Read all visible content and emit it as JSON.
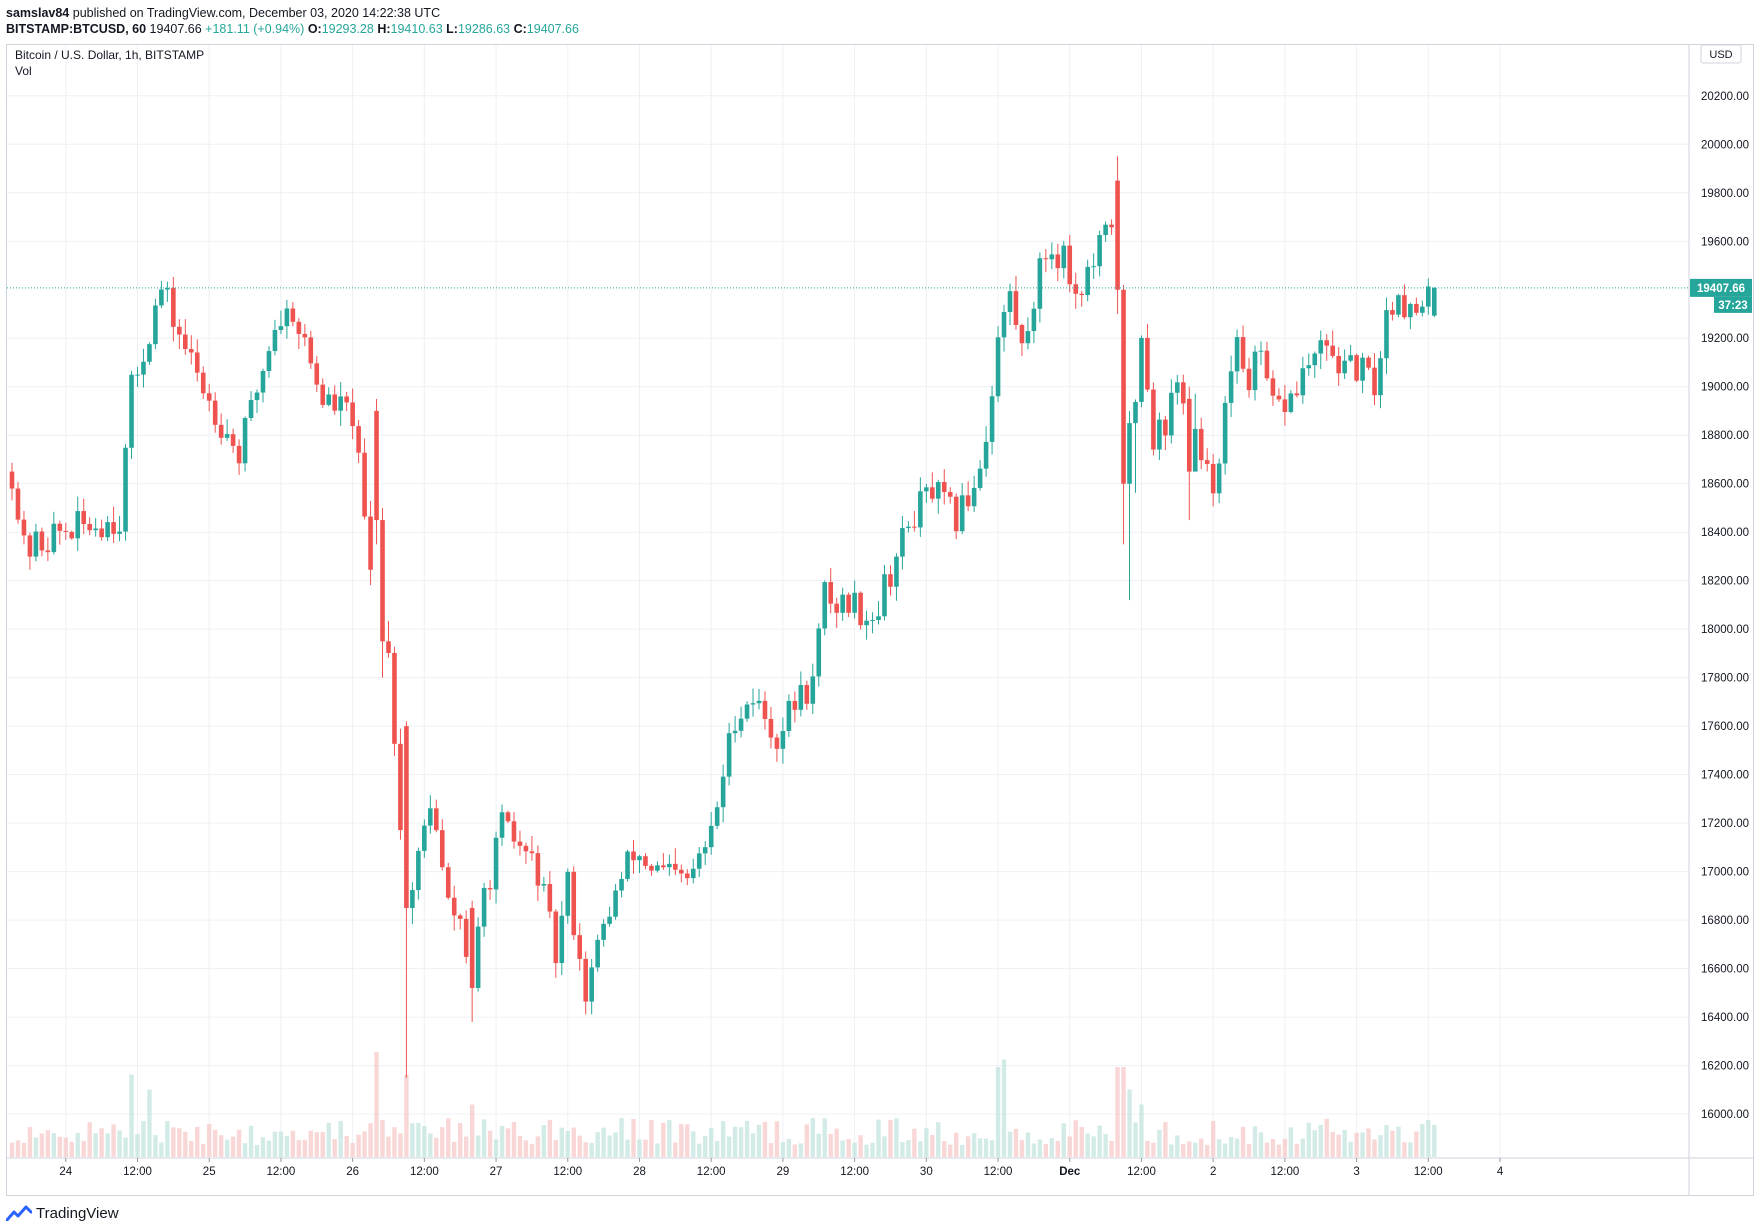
{
  "header": {
    "published_by": "samslav84",
    "published_text": " published on TradingView.com, December 03, 2020 14:22:38 UTC",
    "symbol": "BITSTAMP:BTCUSD, 60",
    "last": "19407.66",
    "change": "+181.11 (+0.94%)",
    "o_label": "O:",
    "o_value": "19293.28",
    "h_label": "H:",
    "h_value": "19410.63",
    "l_label": "L:",
    "l_value": "19286.63",
    "c_label": "C:",
    "c_value": "19407.66"
  },
  "legend": {
    "series_title": "Bitcoin / U.S. Dollar, 1h, BITSTAMP",
    "vol_label": "Vol"
  },
  "currency_button": "USD",
  "price_tag": "19407.66",
  "countdown_tag": "37:23",
  "logo_text": "TradingView",
  "colors": {
    "up": "#26a69a",
    "down": "#ef5350",
    "grid": "#eef0f4",
    "axis_text": "#131722"
  },
  "chart_data": {
    "type": "candlestick",
    "ylim": [
      15860,
      20360
    ],
    "yticks": [
      {
        "v": 20200,
        "label": "20200.00"
      },
      {
        "v": 20000,
        "label": "20000.00"
      },
      {
        "v": 19800,
        "label": "19800.00"
      },
      {
        "v": 19600,
        "label": "19600.00"
      },
      {
        "v": 19200,
        "label": "19200.00"
      },
      {
        "v": 19000,
        "label": "19000.00"
      },
      {
        "v": 18800,
        "label": "18800.00"
      },
      {
        "v": 18600,
        "label": "18600.00"
      },
      {
        "v": 18400,
        "label": "18400.00"
      },
      {
        "v": 18200,
        "label": "18200.00"
      },
      {
        "v": 18000,
        "label": "18000.00"
      },
      {
        "v": 17800,
        "label": "17800.00"
      },
      {
        "v": 17600,
        "label": "17600.00"
      },
      {
        "v": 17400,
        "label": "17400.00"
      },
      {
        "v": 17200,
        "label": "17200.00"
      },
      {
        "v": 17000,
        "label": "17000.00"
      },
      {
        "v": 16800,
        "label": "16800.00"
      },
      {
        "v": 16600,
        "label": "16600.00"
      },
      {
        "v": 16400,
        "label": "16400.00"
      },
      {
        "v": 16200,
        "label": "16200.00"
      },
      {
        "v": 16000,
        "label": "16000.00"
      }
    ],
    "xticks": [
      {
        "bar": 9,
        "label": "24",
        "bold": false
      },
      {
        "bar": 21,
        "label": "12:00",
        "bold": false
      },
      {
        "bar": 33,
        "label": "25",
        "bold": false
      },
      {
        "bar": 45,
        "label": "12:00",
        "bold": false
      },
      {
        "bar": 57,
        "label": "26",
        "bold": false
      },
      {
        "bar": 69,
        "label": "12:00",
        "bold": false
      },
      {
        "bar": 81,
        "label": "27",
        "bold": false
      },
      {
        "bar": 93,
        "label": "12:00",
        "bold": false
      },
      {
        "bar": 105,
        "label": "28",
        "bold": false
      },
      {
        "bar": 117,
        "label": "12:00",
        "bold": false
      },
      {
        "bar": 129,
        "label": "29",
        "bold": false
      },
      {
        "bar": 141,
        "label": "12:00",
        "bold": false
      },
      {
        "bar": 153,
        "label": "30",
        "bold": false
      },
      {
        "bar": 165,
        "label": "12:00",
        "bold": false
      },
      {
        "bar": 177,
        "label": "Dec",
        "bold": true
      },
      {
        "bar": 189,
        "label": "12:00",
        "bold": false
      },
      {
        "bar": 201,
        "label": "2",
        "bold": false
      },
      {
        "bar": 213,
        "label": "12:00",
        "bold": false
      },
      {
        "bar": 225,
        "label": "3",
        "bold": false
      },
      {
        "bar": 237,
        "label": "12:00",
        "bold": false
      },
      {
        "bar": 249,
        "label": "4",
        "bold": false
      }
    ],
    "last_price": 19407.66,
    "keypoints": [
      [
        0,
        18650
      ],
      [
        2,
        18320
      ],
      [
        8,
        18400
      ],
      [
        18,
        18460
      ],
      [
        20,
        18980
      ],
      [
        25,
        19400
      ],
      [
        30,
        19100
      ],
      [
        33,
        18950
      ],
      [
        38,
        18720
      ],
      [
        44,
        19260
      ],
      [
        47,
        19320
      ],
      [
        52,
        18950
      ],
      [
        57,
        18880
      ],
      [
        61,
        18000
      ],
      [
        63,
        17950
      ],
      [
        66,
        16800
      ],
      [
        70,
        17300
      ],
      [
        73,
        16850
      ],
      [
        75,
        16800
      ],
      [
        77,
        16530
      ],
      [
        79,
        16900
      ],
      [
        82,
        17180
      ],
      [
        85,
        17100
      ],
      [
        88,
        17000
      ],
      [
        91,
        16650
      ],
      [
        93,
        16950
      ],
      [
        96,
        16500
      ],
      [
        100,
        16850
      ],
      [
        104,
        17080
      ],
      [
        108,
        17000
      ],
      [
        113,
        16950
      ],
      [
        117,
        17150
      ],
      [
        121,
        17650
      ],
      [
        124,
        17720
      ],
      [
        128,
        17550
      ],
      [
        131,
        17700
      ],
      [
        134,
        17780
      ],
      [
        136,
        18150
      ],
      [
        138,
        18100
      ],
      [
        140,
        18120
      ],
      [
        144,
        18050
      ],
      [
        147,
        18240
      ],
      [
        151,
        18480
      ],
      [
        154,
        18570
      ],
      [
        158,
        18450
      ],
      [
        161,
        18600
      ],
      [
        163,
        18800
      ],
      [
        165,
        19200
      ],
      [
        167,
        19380
      ],
      [
        169,
        19150
      ],
      [
        171,
        19380
      ],
      [
        173,
        19560
      ],
      [
        176,
        19550
      ],
      [
        178,
        19380
      ],
      [
        181,
        19500
      ],
      [
        184,
        19680
      ],
      [
        185,
        19560
      ],
      [
        186,
        19180
      ],
      [
        187,
        18580
      ],
      [
        188,
        18950
      ],
      [
        189,
        19250
      ],
      [
        191,
        18800
      ],
      [
        193,
        18850
      ],
      [
        195,
        19000
      ],
      [
        197,
        18950
      ],
      [
        199,
        18650
      ],
      [
        201,
        18600
      ],
      [
        203,
        18900
      ],
      [
        205,
        19150
      ],
      [
        207,
        19050
      ],
      [
        209,
        19100
      ],
      [
        211,
        18900
      ],
      [
        214,
        18950
      ],
      [
        216,
        19050
      ],
      [
        218,
        19120
      ],
      [
        221,
        19150
      ],
      [
        223,
        19050
      ],
      [
        225,
        19080
      ],
      [
        228,
        19000
      ],
      [
        230,
        19300
      ],
      [
        232,
        19400
      ],
      [
        234,
        19300
      ],
      [
        236,
        19300
      ],
      [
        238,
        19407.66
      ]
    ],
    "special": [
      {
        "i": 61,
        "o": 18900,
        "h": 18950,
        "l": 18350,
        "c": 18450
      },
      {
        "i": 62,
        "o": 18450,
        "h": 18500,
        "l": 17800,
        "c": 17950
      },
      {
        "i": 66,
        "o": 17600,
        "h": 17620,
        "l": 16150,
        "c": 16850
      },
      {
        "i": 77,
        "o": 16850,
        "h": 16880,
        "l": 16380,
        "c": 16520
      },
      {
        "i": 185,
        "o": 19850,
        "h": 19950,
        "l": 19300,
        "c": 19400
      },
      {
        "i": 186,
        "o": 19400,
        "h": 19420,
        "l": 18350,
        "c": 18600
      },
      {
        "i": 187,
        "o": 18600,
        "h": 18900,
        "l": 18120,
        "c": 18850
      },
      {
        "i": 197,
        "o": 18950,
        "h": 19000,
        "l": 18450,
        "c": 18650
      }
    ],
    "volume_spikes": [
      {
        "i": 20,
        "v": 0.55
      },
      {
        "i": 23,
        "v": 0.45
      },
      {
        "i": 61,
        "v": 0.7
      },
      {
        "i": 66,
        "v": 0.55
      },
      {
        "i": 77,
        "v": 0.35
      },
      {
        "i": 165,
        "v": 0.6
      },
      {
        "i": 166,
        "v": 0.65
      },
      {
        "i": 185,
        "v": 0.6
      },
      {
        "i": 186,
        "v": 0.6
      },
      {
        "i": 187,
        "v": 0.45
      },
      {
        "i": 189,
        "v": 0.35
      }
    ]
  }
}
